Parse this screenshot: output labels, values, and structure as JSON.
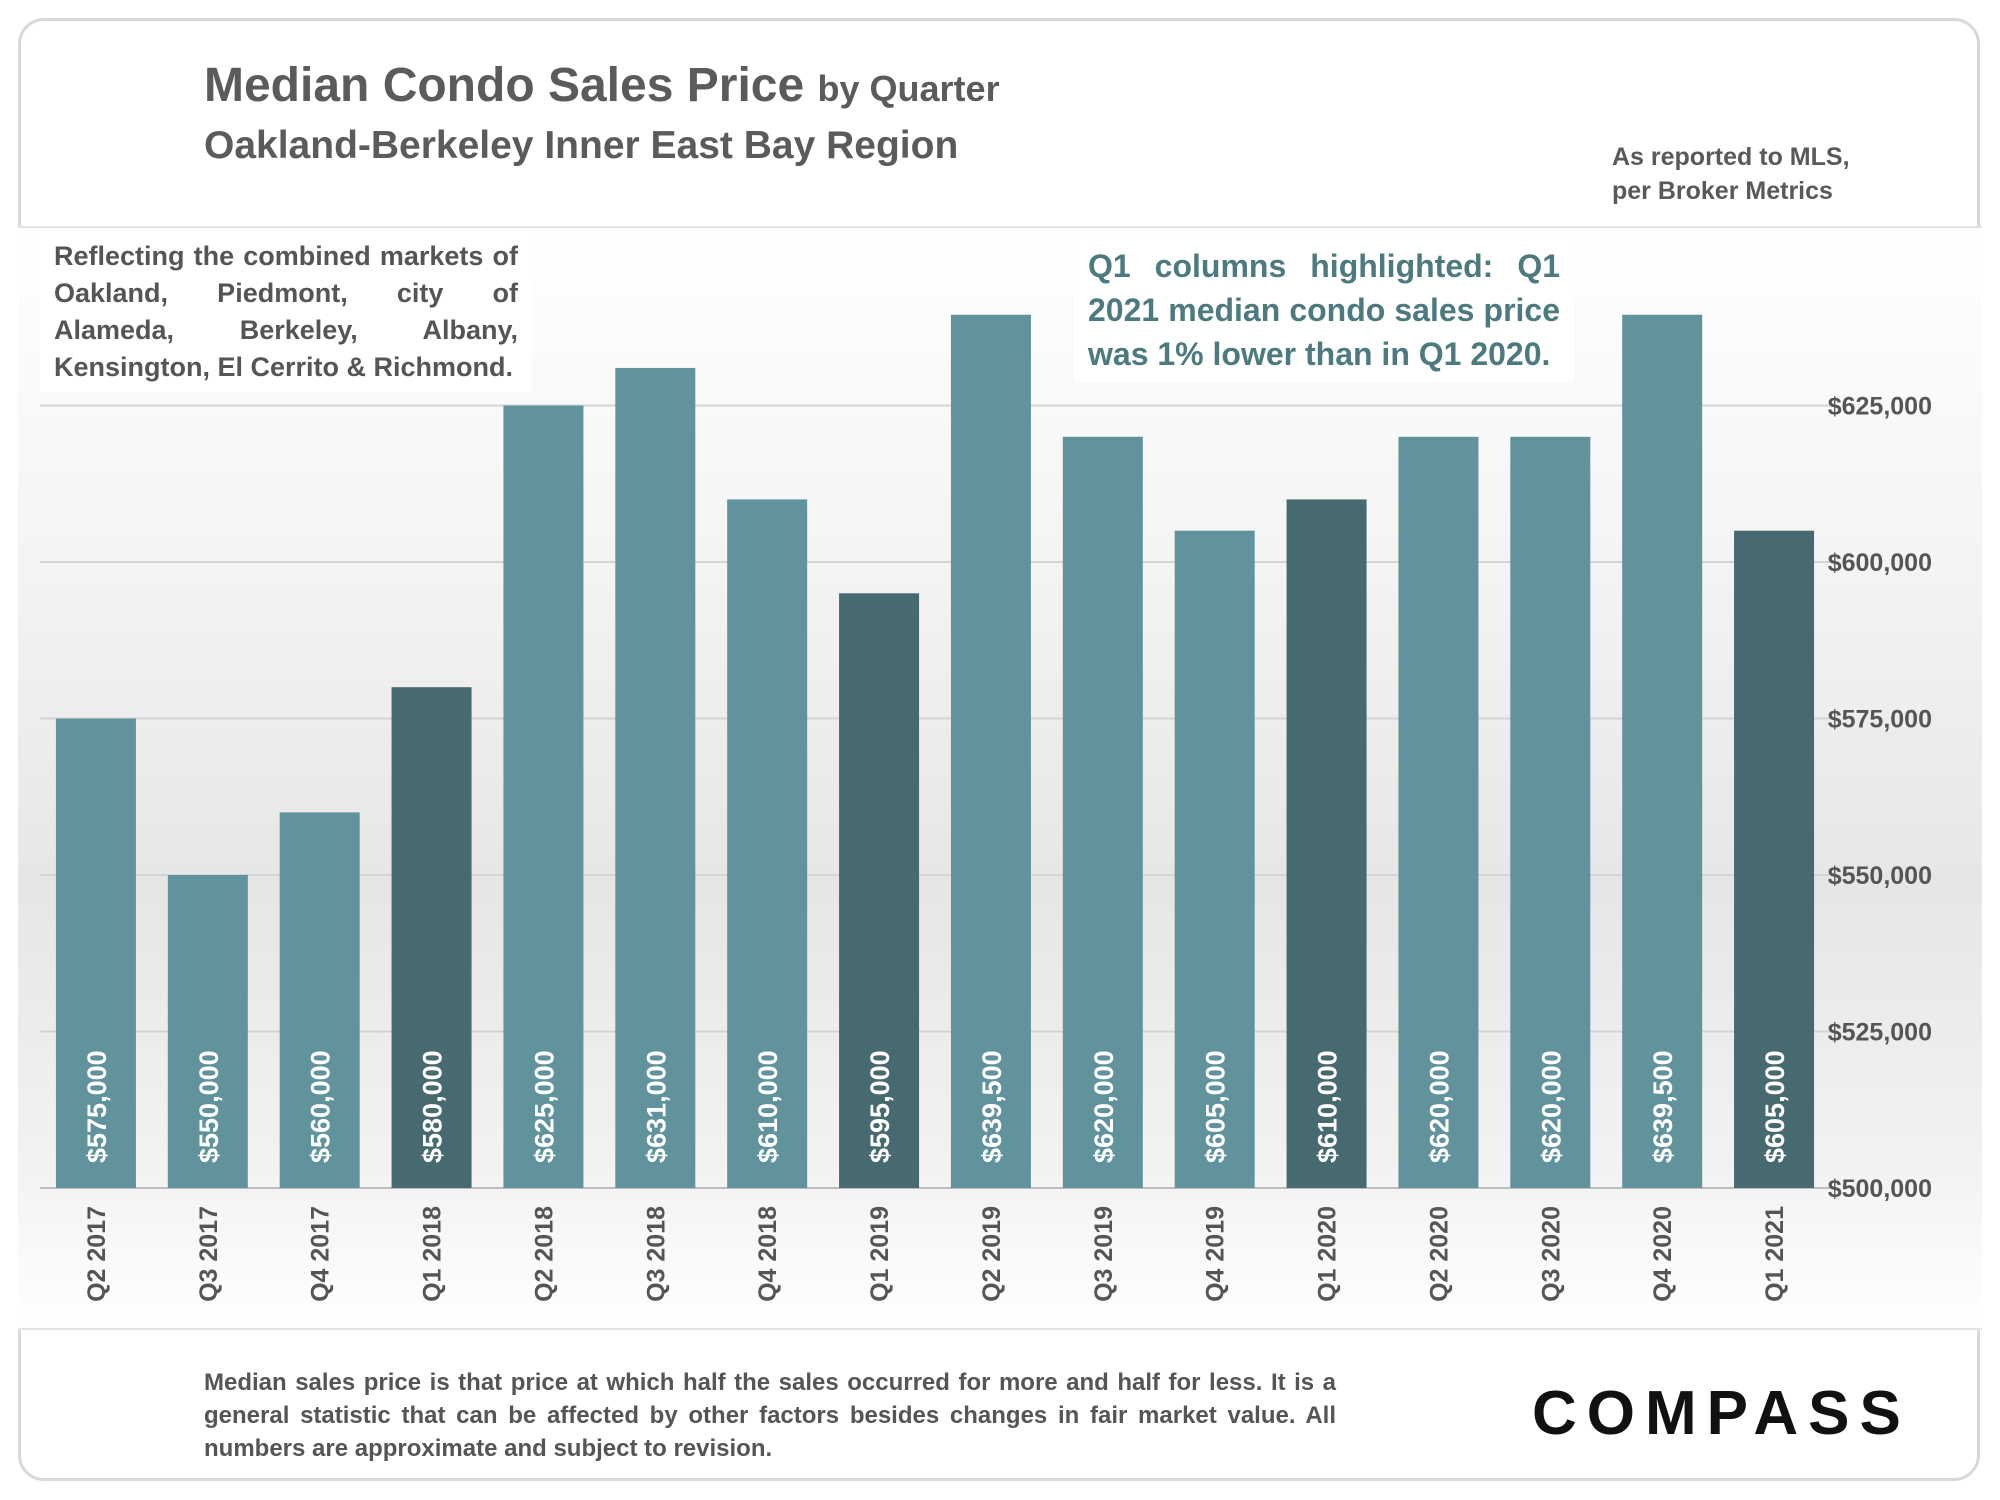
{
  "header": {
    "title": "Median Condo Sales Price",
    "title_suffix": "by Quarter",
    "subtitle": "Oakland-Berkeley Inner East Bay Region",
    "source_line1": "As reported to MLS,",
    "source_line2": "per Broker Metrics"
  },
  "annotations": {
    "regions": "Reflecting the combined markets of Oakland, Piedmont, city of Alameda, Berkeley, Albany, Kensington, El Cerrito & Richmond.",
    "highlight": "Q1 columns highlighted: Q1 2021 median condo sales price was 1% lower than in Q1 2020."
  },
  "footer": {
    "note": "Median sales price is that price at which half the sales occurred for more and half for less. It is a general statistic that can be affected by other factors besides changes in fair market value. All numbers are approximate and subject to revision.",
    "logo": "COMPASS"
  },
  "colors": {
    "bar": "#61939c",
    "bar_highlight": "#466a70",
    "label": "#ffffff",
    "axis_text": "#555555",
    "annotation": "#4c7a7f"
  },
  "chart_data": {
    "type": "bar",
    "title": "Median Condo Sales Price by Quarter",
    "subtitle": "Oakland-Berkeley Inner East Bay Region",
    "categories": [
      "Q2 2017",
      "Q3 2017",
      "Q4 2017",
      "Q1 2018",
      "Q2 2018",
      "Q3 2018",
      "Q4 2018",
      "Q1 2019",
      "Q2 2019",
      "Q3 2019",
      "Q4 2019",
      "Q1 2020",
      "Q2 2020",
      "Q3 2020",
      "Q4 2020",
      "Q1 2021"
    ],
    "values": [
      575000,
      550000,
      560000,
      580000,
      625000,
      631000,
      610000,
      595000,
      639500,
      620000,
      605000,
      610000,
      620000,
      620000,
      639500,
      605000
    ],
    "data_labels": [
      "$575,000",
      "$550,000",
      "$560,000",
      "$580,000",
      "$625,000",
      "$631,000",
      "$610,000",
      "$595,000",
      "$639,500",
      "$620,000",
      "$605,000",
      "$610,000",
      "$620,000",
      "$620,000",
      "$639,500",
      "$605,000"
    ],
    "highlighted": [
      false,
      false,
      false,
      true,
      false,
      false,
      false,
      true,
      false,
      false,
      false,
      true,
      false,
      false,
      false,
      true
    ],
    "ylim": [
      500000,
      640000
    ],
    "yticks": [
      500000,
      525000,
      550000,
      575000,
      600000,
      625000
    ],
    "ytick_labels": [
      "$500,000",
      "$525,000",
      "$550,000",
      "$575,000",
      "$600,000",
      "$625,000"
    ],
    "y_axis_side": "right",
    "grid": true,
    "legend": "none"
  }
}
